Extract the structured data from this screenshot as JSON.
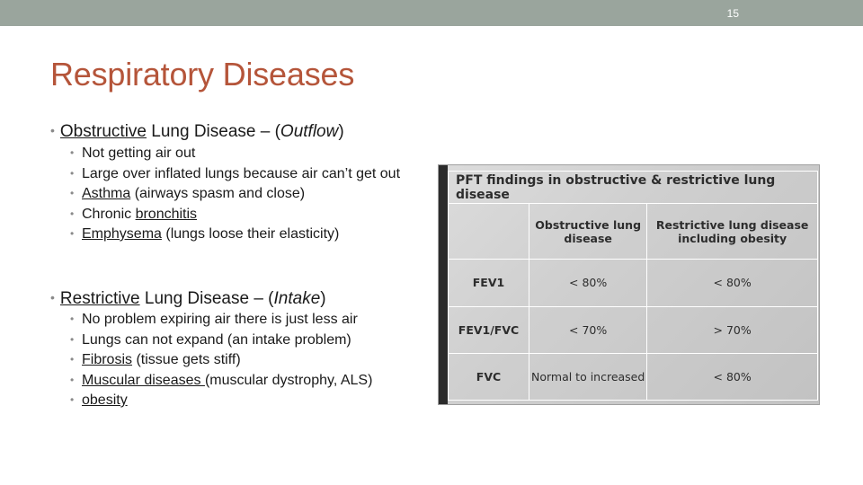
{
  "slide_number": "15",
  "title": "Respiratory Diseases",
  "obstructive": {
    "term": "Obstructive",
    "rest": " Lung Disease – (",
    "paren": "Outflow",
    "close": ")",
    "items": [
      {
        "segments": [
          {
            "t": "Not getting air out",
            "u": false
          }
        ]
      },
      {
        "segments": [
          {
            "t": "Large over inflated lungs because air can’t get out",
            "u": false
          }
        ]
      },
      {
        "segments": [
          {
            "t": "Asthma",
            "u": true
          },
          {
            "t": " (airways spasm and close)",
            "u": false
          }
        ]
      },
      {
        "segments": [
          {
            "t": "Chronic ",
            "u": false
          },
          {
            "t": "bronchitis",
            "u": true
          }
        ]
      },
      {
        "segments": [
          {
            "t": "Emphysema",
            "u": true
          },
          {
            "t": " (lungs loose their elasticity)",
            "u": false
          }
        ]
      }
    ]
  },
  "restrictive": {
    "term": "Restrictive",
    "rest": " Lung Disease – (",
    "paren": "Intake",
    "close": ")",
    "items": [
      {
        "segments": [
          {
            "t": "No problem expiring air there is just less air",
            "u": false
          }
        ]
      },
      {
        "segments": [
          {
            "t": "Lungs can not expand (an intake problem)",
            "u": false
          }
        ]
      },
      {
        "segments": [
          {
            "t": "Fibrosis",
            "u": true
          },
          {
            "t": " (tissue gets stiff)",
            "u": false
          }
        ]
      },
      {
        "segments": [
          {
            "t": "Muscular diseases ",
            "u": true
          },
          {
            "t": "(muscular dystrophy, ALS)",
            "u": false
          }
        ]
      },
      {
        "segments": [
          {
            "t": "obesity",
            "u": true
          }
        ]
      }
    ]
  },
  "pft_table": {
    "title": "PFT findings in obstructive & restrictive lung disease",
    "col_headers": [
      "Obstructive lung disease",
      "Restrictive lung disease including obesity"
    ],
    "rows": [
      {
        "label": "FEV1",
        "obstructive": "< 80%",
        "restrictive": "< 80%"
      },
      {
        "label": "FEV1/FVC",
        "obstructive": "< 70%",
        "restrictive": "> 70%"
      },
      {
        "label": "FVC",
        "obstructive": "Normal to increased",
        "restrictive": "< 80%"
      }
    ]
  },
  "colors": {
    "top_bar": "#9aa59d",
    "title": "#b5553a"
  }
}
